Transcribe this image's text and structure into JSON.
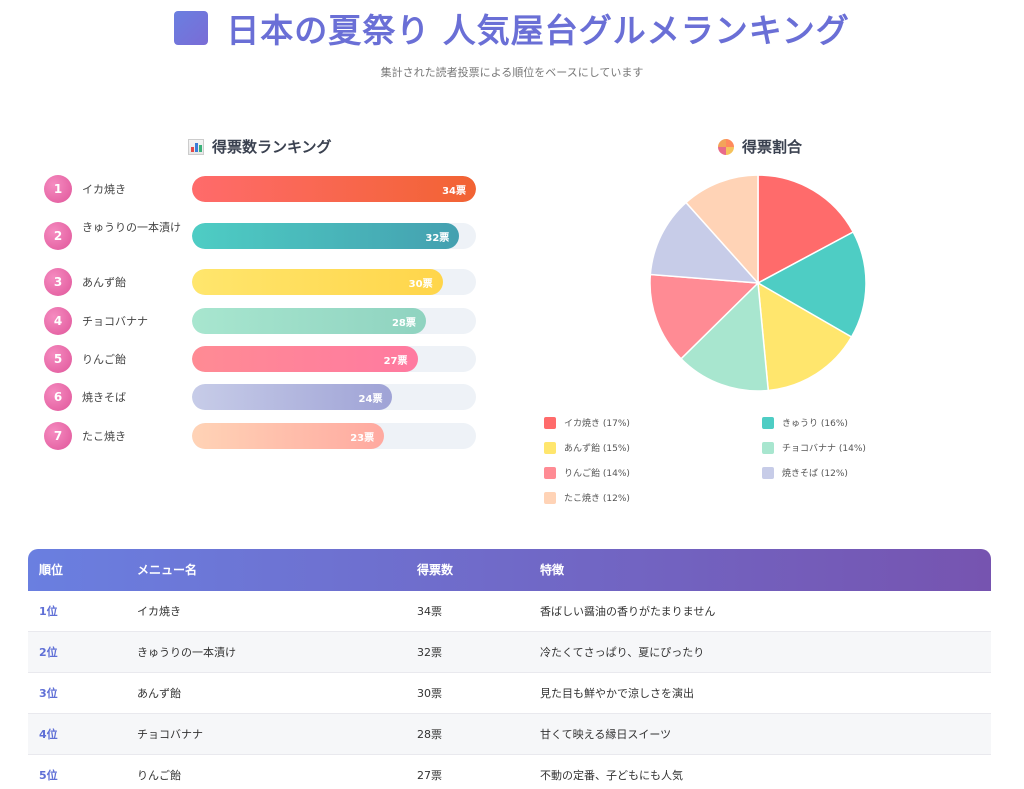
{
  "header": {
    "title": "日本の夏祭り 人気屋台グルメランキング",
    "subtitle": "集計された読者投票による順位をベースにしています"
  },
  "bar_section": {
    "title": "得票数ランキング"
  },
  "pie_section": {
    "title": "得票割合"
  },
  "bar_colors": [
    [
      "#ff6b6b",
      "#f26333"
    ],
    [
      "#4ecdc4",
      "#44a0b0"
    ],
    [
      "#ffe66d",
      "#ffd54a"
    ],
    [
      "#a8e6cf",
      "#8fd3c0"
    ],
    [
      "#ff8b94",
      "#ff7aa0"
    ],
    [
      "#c7cce8",
      "#9fa3d6"
    ],
    [
      "#ffd3b6",
      "#ffa9a0"
    ]
  ],
  "chart_data": [
    {
      "type": "bar",
      "orientation": "horizontal",
      "title": "得票数ランキング",
      "categories": [
        "イカ焼き",
        "きゅうりの一本漬け",
        "あんず飴",
        "チョコバナナ",
        "りんご飴",
        "焼きそば",
        "たこ焼き"
      ],
      "ranks": [
        "1",
        "2",
        "3",
        "4",
        "5",
        "6",
        "7"
      ],
      "values": [
        34,
        32,
        30,
        28,
        27,
        24,
        23
      ],
      "value_labels": [
        "34票",
        "32票",
        "30票",
        "28票",
        "27票",
        "24票",
        "23票"
      ],
      "xlim": [
        0,
        34
      ]
    },
    {
      "type": "pie",
      "title": "得票割合",
      "categories": [
        "イカ焼き",
        "きゅうり",
        "あんず飴",
        "チョコバナナ",
        "りんご飴",
        "焼きそば",
        "たこ焼き"
      ],
      "values": [
        34,
        32,
        30,
        28,
        27,
        24,
        23
      ],
      "legend_labels": [
        "イカ焼き (17%)",
        "きゅうり (16%)",
        "あんず飴 (15%)",
        "チョコバナナ (14%)",
        "りんご飴 (14%)",
        "焼きそば (12%)",
        "たこ焼き (12%)"
      ],
      "colors": [
        "#ff6b6b",
        "#4ecdc4",
        "#ffe66d",
        "#a8e6cf",
        "#ff8b94",
        "#c7cce8",
        "#ffd3b6"
      ],
      "legend_position": "bottom"
    }
  ],
  "table": {
    "headers": [
      "順位",
      "メニュー名",
      "得票数",
      "特徴"
    ],
    "rows": [
      [
        "1位",
        "イカ焼き",
        "34票",
        "香ばしい醤油の香りがたまりません"
      ],
      [
        "2位",
        "きゅうりの一本漬け",
        "32票",
        "冷たくてさっぱり、夏にぴったり"
      ],
      [
        "3位",
        "あんず飴",
        "30票",
        "見た目も鮮やかで涼しさを演出"
      ],
      [
        "4位",
        "チョコバナナ",
        "28票",
        "甘くて映える縁日スイーツ"
      ],
      [
        "5位",
        "りんご飴",
        "27票",
        "不動の定番、子どもにも人気"
      ]
    ]
  }
}
